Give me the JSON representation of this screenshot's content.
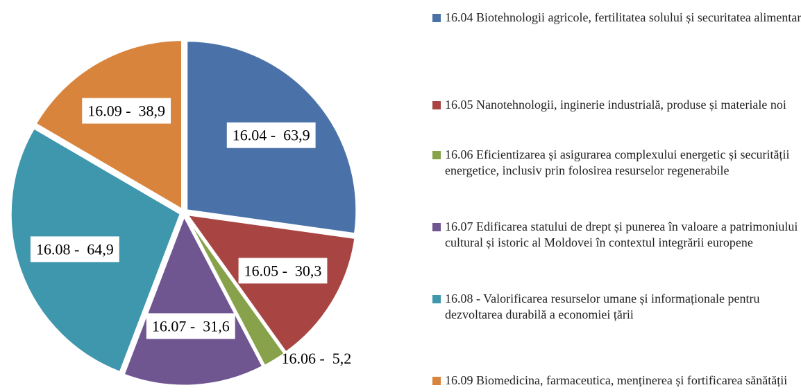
{
  "chart_data": {
    "type": "pie",
    "categories": [
      "16.04 Biotehnologii agricole, fertilitatea solului și securitatea alimentară",
      "16.05 Nanotehnologii, inginerie industrială, produse și materiale noi",
      "16.06 Eficientizarea și asigurarea complexului energetic și securității energetice, inclusiv prin folosirea resurselor regenerabile",
      "16.07 Edificarea statului de drept și punerea în valoare a patrimoniului cultural și istoric al Moldovei în contextul integrării europene",
      "16.08 - Valorificarea resurselor umane și informaționale pentru dezvoltarea durabilă a economiei țării",
      "16.09 Biomedicina, farmaceutica, menținerea și fortificarea sănătății"
    ],
    "values": [
      63.9,
      30.3,
      5.2,
      31.6,
      64.9,
      38.9
    ],
    "value_labels": [
      "16.04 -  63,9",
      "16.05 -  30,3",
      "16.06 -  5,2",
      "16.07 -  31,6",
      "16.08 -  64,9",
      "16.09 -  38,9"
    ],
    "colors": [
      "#4a72a8",
      "#a84543",
      "#87a24a",
      "#6f5690",
      "#3f97ad",
      "#d9843d"
    ],
    "legend": "right"
  }
}
